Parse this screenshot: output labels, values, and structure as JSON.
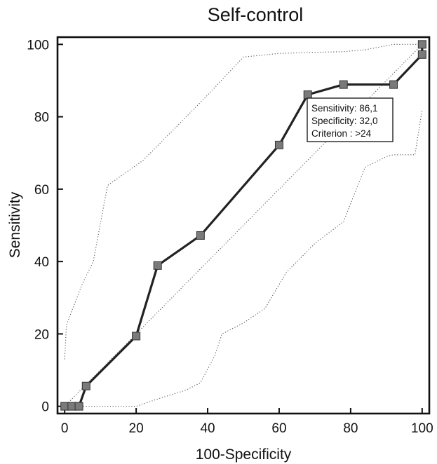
{
  "chart_data": {
    "type": "line",
    "title": "Self-control",
    "xlabel": "100-Specificity",
    "ylabel": "Sensitivity",
    "xlim": [
      -2,
      102
    ],
    "ylim": [
      -2,
      102
    ],
    "x_ticks": [
      0,
      20,
      40,
      60,
      80,
      100
    ],
    "y_ticks": [
      0,
      20,
      40,
      60,
      80,
      100
    ],
    "grid": false,
    "series": [
      {
        "style": "solid-with-square-markers",
        "color": "#222222",
        "marker_color": "#7a7a7a",
        "x": [
          0,
          2,
          4,
          6,
          20,
          26,
          38,
          60,
          68,
          78,
          92,
          100,
          100
        ],
        "y": [
          0,
          0,
          0,
          5.6,
          19.4,
          38.9,
          47.2,
          72.2,
          86.1,
          88.9,
          88.9,
          97.2,
          100
        ]
      },
      {
        "style": "dotted",
        "color": "#555555",
        "x": [
          0,
          0.5,
          5,
          8,
          12,
          22,
          30,
          40,
          50,
          60,
          70,
          78,
          84,
          92,
          96,
          100
        ],
        "y": [
          13,
          22.5,
          34,
          40,
          61,
          68,
          76,
          86,
          96.5,
          97.5,
          97.8,
          98,
          98.5,
          100,
          100,
          100
        ]
      },
      {
        "style": "dotted",
        "color": "#555555",
        "x": [
          0,
          6,
          20,
          26,
          34,
          38,
          42,
          44,
          50,
          56,
          62,
          70,
          78,
          84,
          90,
          92,
          98,
          100
        ],
        "y": [
          0,
          0,
          0,
          2,
          4.5,
          6.5,
          14,
          20,
          23,
          27,
          37,
          45,
          51,
          66,
          69,
          69.5,
          69.5,
          82
        ]
      },
      {
        "style": "dotted",
        "color": "#555555",
        "x": [
          0,
          100
        ],
        "y": [
          0,
          100
        ]
      }
    ],
    "annotation": {
      "lines": [
        "Sensitivity: 86,1",
        "Specificity: 32,0",
        "Criterion : >24"
      ]
    }
  }
}
